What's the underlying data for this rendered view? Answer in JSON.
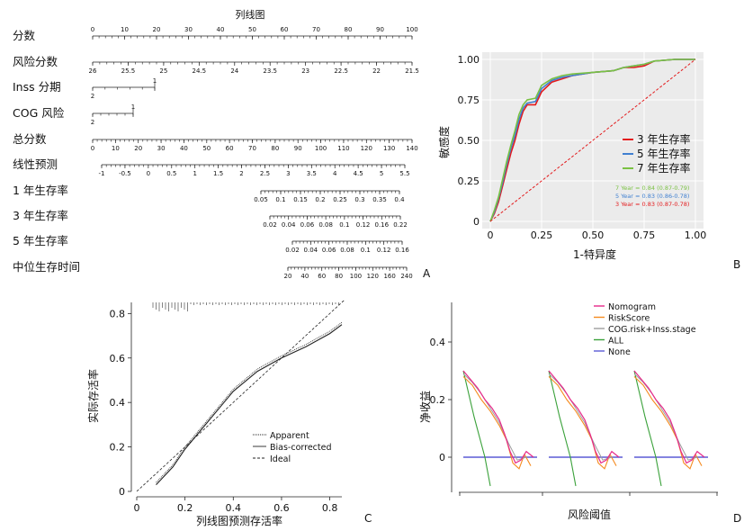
{
  "chart_data": [
    {
      "panel": "A",
      "type": "nomogram",
      "title": "列线图",
      "rows": [
        {
          "label": "分数",
          "ticks": [
            "0",
            "10",
            "20",
            "30",
            "40",
            "50",
            "60",
            "70",
            "80",
            "90",
            "100"
          ]
        },
        {
          "label": "风险分数",
          "ticks": [
            "26",
            "25.5",
            "25",
            "24.5",
            "24",
            "23.5",
            "23",
            "22.5",
            "22",
            "21.5"
          ]
        },
        {
          "label": "Inss 分期",
          "ticks": [
            "2",
            "1"
          ]
        },
        {
          "label": "COG 风险",
          "ticks": [
            "2",
            "1"
          ]
        },
        {
          "label": "总分数",
          "ticks": [
            "0",
            "10",
            "20",
            "30",
            "40",
            "50",
            "60",
            "70",
            "80",
            "90",
            "100",
            "110",
            "120",
            "130",
            "140"
          ]
        },
        {
          "label": "线性预测",
          "ticks": [
            "-1",
            "-0.5",
            "0",
            "0.5",
            "1",
            "1.5",
            "2",
            "2.5",
            "3",
            "3.5",
            "4",
            "4.5",
            "5",
            "5.5"
          ]
        },
        {
          "label": "1 年生存率",
          "ticks": [
            "0.05",
            "0.1",
            "0.15",
            "0.2",
            "0.25",
            "0.3",
            "0.35",
            "0.4"
          ]
        },
        {
          "label": "3 年生存率",
          "ticks": [
            "0.02",
            "0.04",
            "0.06",
            "0.08",
            "0.1",
            "0.12",
            "0.16",
            "0.22"
          ]
        },
        {
          "label": "5 年生存率",
          "ticks": [
            "0.02",
            "0.04",
            "0.06",
            "0.08",
            "0.1",
            "0.12",
            "0.16"
          ]
        },
        {
          "label": "中位生存时间",
          "ticks": [
            "20",
            "40",
            "60",
            "80",
            "100",
            "120",
            "160",
            "240"
          ]
        }
      ]
    },
    {
      "panel": "B",
      "type": "line",
      "xlabel": "1-特异度",
      "ylabel": "敏感度",
      "xlim": [
        0,
        1
      ],
      "ylim": [
        0,
        1
      ],
      "x_ticks": [
        "0",
        "0.25",
        "0.50",
        "0.75",
        "1.00"
      ],
      "y_ticks": [
        "0",
        "0.25",
        "0.50",
        "0.75",
        "1.00"
      ],
      "legend": [
        "3 年生存率",
        "5 年生存率",
        "7 年生存率"
      ],
      "auc_labels": [
        "7 Year = 0.84 (0.87-0.79)",
        "5 Year = 0.83 (0.86-0.78)",
        "3 Year = 0.83 (0.87-0.78)"
      ],
      "series": [
        {
          "name": "3 年生存率",
          "color": "#e31a1c",
          "x": [
            0,
            0.02,
            0.04,
            0.06,
            0.08,
            0.1,
            0.12,
            0.14,
            0.16,
            0.18,
            0.22,
            0.25,
            0.3,
            0.35,
            0.4,
            0.5,
            0.6,
            0.65,
            0.7,
            0.75,
            0.8,
            0.9,
            1.0
          ],
          "y": [
            0,
            0.05,
            0.12,
            0.22,
            0.32,
            0.42,
            0.5,
            0.6,
            0.68,
            0.72,
            0.72,
            0.8,
            0.86,
            0.88,
            0.9,
            0.92,
            0.93,
            0.95,
            0.95,
            0.96,
            0.99,
            1.0,
            1.0
          ]
        },
        {
          "name": "5 年生存率",
          "color": "#3f7fd0",
          "x": [
            0,
            0.02,
            0.04,
            0.06,
            0.08,
            0.1,
            0.12,
            0.14,
            0.16,
            0.18,
            0.22,
            0.25,
            0.3,
            0.35,
            0.4,
            0.5,
            0.6,
            0.65,
            0.7,
            0.75,
            0.8,
            0.9,
            1.0
          ],
          "y": [
            0,
            0.06,
            0.14,
            0.24,
            0.35,
            0.45,
            0.53,
            0.63,
            0.7,
            0.73,
            0.74,
            0.82,
            0.87,
            0.89,
            0.9,
            0.92,
            0.93,
            0.95,
            0.96,
            0.97,
            0.99,
            1.0,
            1.0
          ]
        },
        {
          "name": "7 年生存率",
          "color": "#7ac143",
          "x": [
            0,
            0.02,
            0.04,
            0.06,
            0.08,
            0.1,
            0.12,
            0.14,
            0.16,
            0.18,
            0.22,
            0.25,
            0.3,
            0.35,
            0.4,
            0.5,
            0.6,
            0.65,
            0.7,
            0.75,
            0.8,
            0.9,
            1.0
          ],
          "y": [
            0,
            0.07,
            0.15,
            0.26,
            0.37,
            0.47,
            0.56,
            0.66,
            0.72,
            0.75,
            0.76,
            0.84,
            0.88,
            0.9,
            0.91,
            0.92,
            0.93,
            0.95,
            0.96,
            0.97,
            0.99,
            1.0,
            1.0
          ]
        },
        {
          "name": "",
          "color": "#e31a1c",
          "dash": true,
          "x": [
            0,
            1
          ],
          "y": [
            0,
            1
          ]
        }
      ]
    },
    {
      "panel": "C",
      "type": "line",
      "xlabel": "列线图预测存活率",
      "ylabel": "实际存活率",
      "xlim": [
        0,
        0.85
      ],
      "ylim": [
        0,
        0.85
      ],
      "x_ticks": [
        "0",
        "0.2",
        "0.4",
        "0.6",
        "0.8"
      ],
      "y_ticks": [
        "0",
        "0.2",
        "0.4",
        "0.6",
        "0.8"
      ],
      "legend": [
        "Apparent",
        "Bias-corrected",
        "Ideal"
      ],
      "series": [
        {
          "name": "Apparent",
          "x": [
            0.08,
            0.15,
            0.2,
            0.3,
            0.4,
            0.5,
            0.6,
            0.7,
            0.8,
            0.85
          ],
          "y": [
            0.04,
            0.12,
            0.2,
            0.33,
            0.46,
            0.55,
            0.61,
            0.66,
            0.72,
            0.76
          ]
        },
        {
          "name": "Bias-corrected",
          "x": [
            0.08,
            0.15,
            0.2,
            0.3,
            0.4,
            0.5,
            0.6,
            0.7,
            0.8,
            0.85
          ],
          "y": [
            0.03,
            0.11,
            0.19,
            0.32,
            0.45,
            0.54,
            0.6,
            0.65,
            0.71,
            0.75
          ]
        },
        {
          "name": "Ideal",
          "x": [
            0,
            0.86
          ],
          "y": [
            0,
            0.86
          ]
        }
      ]
    },
    {
      "panel": "D",
      "type": "line",
      "xlabel": "风险阈值",
      "ylabel": "净收益",
      "y_ticks": [
        "0",
        "0.2",
        "0.4"
      ],
      "legend": [
        "Nomogram",
        "RiskScore",
        "COG.risk+Inss.stage",
        "ALL",
        "None"
      ],
      "legend_colors": [
        "#e7298a",
        "#f58a1f",
        "#9e9e9e",
        "#3aa13a",
        "#5b5bd6"
      ]
    }
  ],
  "panel_labels": {
    "a": "A",
    "b": "B",
    "c": "C",
    "d": "D"
  }
}
